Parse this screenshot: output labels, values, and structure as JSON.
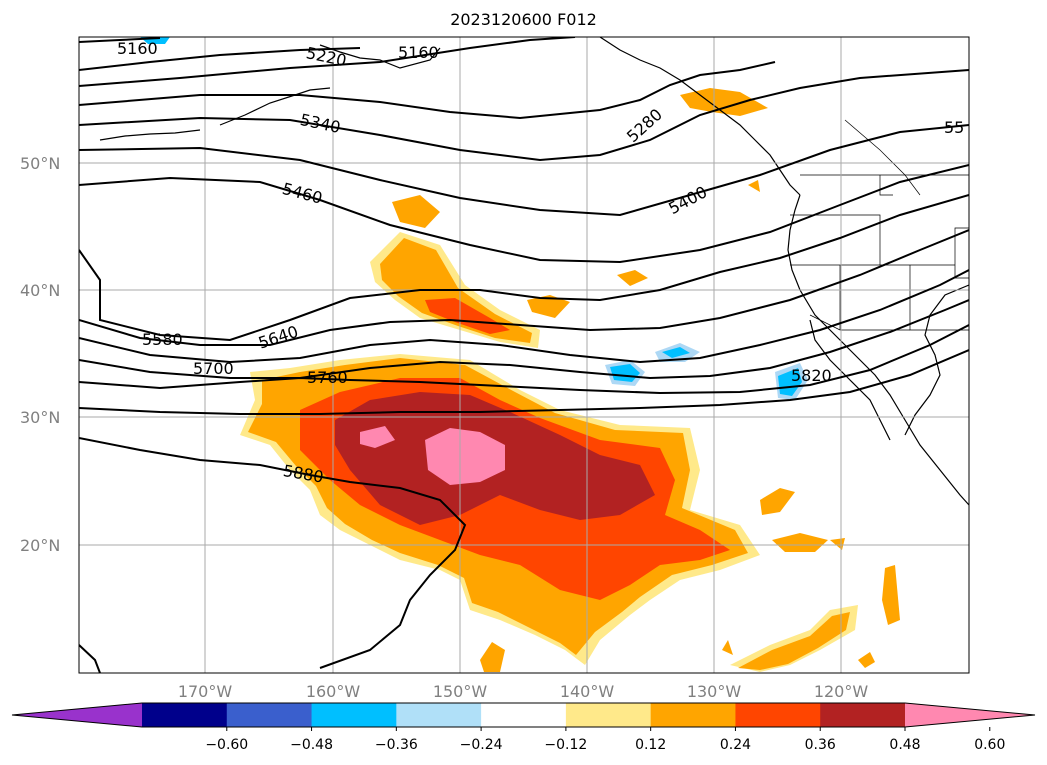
{
  "title": "2023120600 F012",
  "map": {
    "lat_labels": [
      "50°N",
      "40°N",
      "30°N",
      "20°N"
    ],
    "lon_labels": [
      "170°W",
      "160°W",
      "150°W",
      "140°W",
      "130°W",
      "120°W"
    ],
    "contour_labels": [
      "5160",
      "5220",
      "5160",
      "5280",
      "5340",
      "5400",
      "5460",
      "55",
      "5580",
      "5640",
      "5700",
      "5760",
      "5820",
      "5880"
    ],
    "fill_colors": {
      "pos_012": "#ffe98a",
      "pos_024": "#ffa500",
      "pos_036": "#ff4500",
      "pos_048": "#b22222",
      "pos_060": "#ff88b0",
      "neg_024": "#add8f5",
      "neg_036": "#00bfff"
    }
  },
  "colorbar": {
    "ticks": [
      "−0.60",
      "−0.48",
      "−0.36",
      "−0.24",
      "−0.12",
      "0.12",
      "0.24",
      "0.36",
      "0.48",
      "0.60"
    ],
    "colors": [
      "#9932cc",
      "#00008b",
      "#3a5fcd",
      "#00bfff",
      "#b0e0f8",
      "#ffffff",
      "#ffe98a",
      "#ffa500",
      "#ff4500",
      "#b22222",
      "#ff88b0"
    ]
  }
}
